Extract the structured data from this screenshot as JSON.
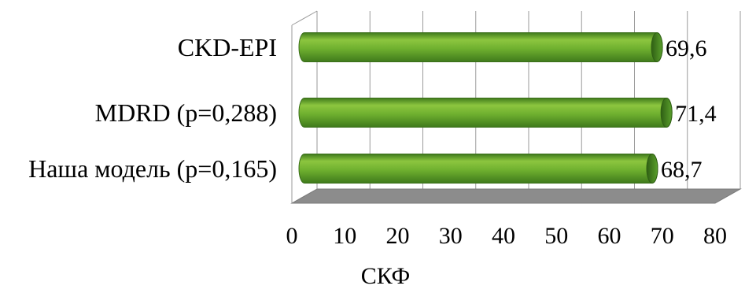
{
  "chart_data": {
    "type": "bar",
    "orientation": "horizontal",
    "style": "3d-cylinder",
    "categories": [
      "CKD-EPI",
      "MDRD (p=0,288)",
      "Наша модель (p=0,165)"
    ],
    "values": [
      69.6,
      71.4,
      68.7
    ],
    "value_labels": [
      "69,6",
      "71,4",
      "68,7"
    ],
    "xlabel": "СКФ",
    "xlim": [
      0,
      80
    ],
    "x_ticks": [
      "0",
      "10",
      "20",
      "30",
      "40",
      "50",
      "60",
      "70",
      "80"
    ],
    "grid": true,
    "legend": "none",
    "colors": {
      "bar_light": "#8cc63f",
      "bar_mid": "#5aa02c",
      "bar_dark": "#3f7a1c",
      "floor": "#8c8c8c",
      "grid": "#9a9a9a"
    }
  }
}
